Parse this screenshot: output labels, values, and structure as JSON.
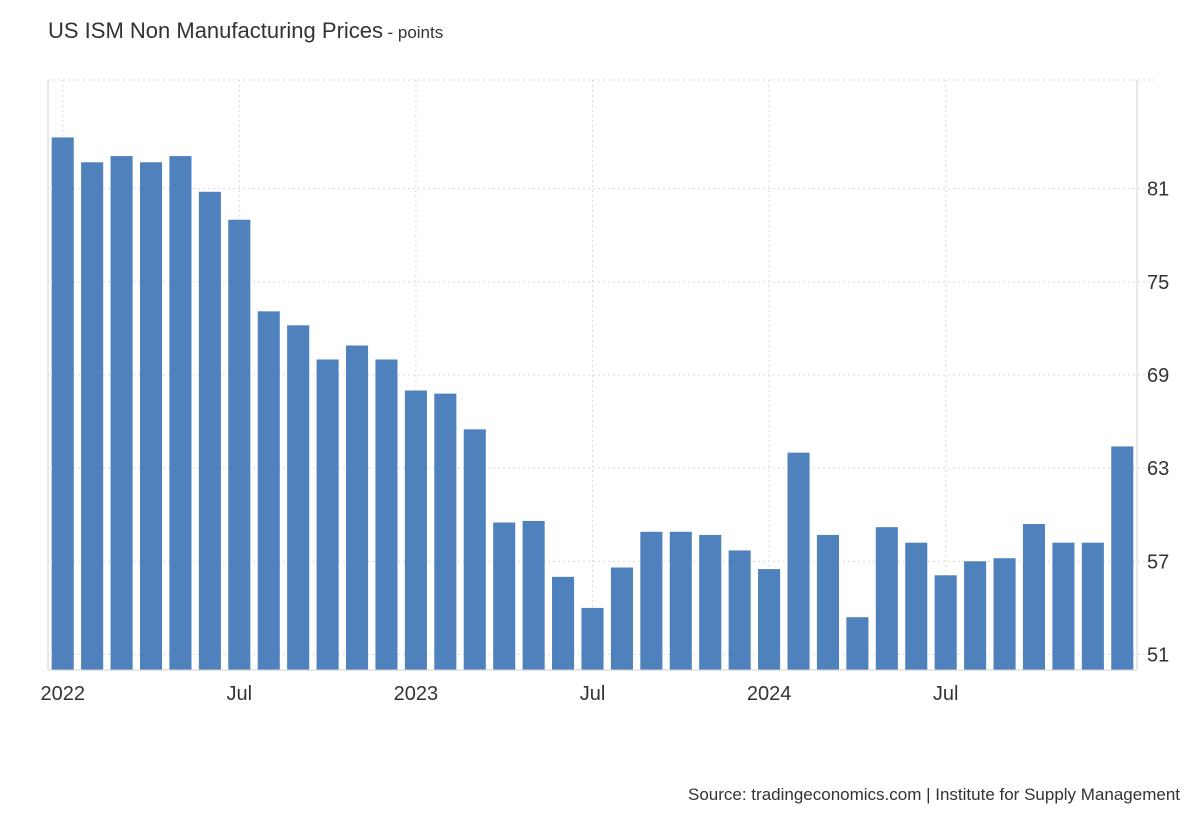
{
  "header": {
    "title": "US ISM Non Manufacturing Prices",
    "unit": "- points"
  },
  "footer": {
    "source": "Source: tradingeconomics.com | Institute for Supply Management"
  },
  "colors": {
    "bar": "#4f81bd",
    "grid": "#d9d9d9",
    "axis": "#d0d0d0",
    "text": "#333333"
  },
  "chart_data": {
    "type": "bar",
    "title": "US ISM Non Manufacturing Prices",
    "ylabel": "points",
    "ylim": [
      50,
      88
    ],
    "yticks": [
      51,
      57,
      63,
      69,
      75,
      81
    ],
    "grid": true,
    "x": [
      "2022-01",
      "2022-02",
      "2022-03",
      "2022-04",
      "2022-05",
      "2022-06",
      "2022-07",
      "2022-08",
      "2022-09",
      "2022-10",
      "2022-11",
      "2022-12",
      "2023-01",
      "2023-02",
      "2023-03",
      "2023-04",
      "2023-05",
      "2023-06",
      "2023-07",
      "2023-08",
      "2023-09",
      "2023-10",
      "2023-11",
      "2023-12",
      "2024-01",
      "2024-02",
      "2024-03",
      "2024-04",
      "2024-05",
      "2024-06",
      "2024-07",
      "2024-08",
      "2024-09",
      "2024-10",
      "2024-11",
      "2024-12",
      "2025-01"
    ],
    "values": [
      84.3,
      82.7,
      83.1,
      82.7,
      83.1,
      80.8,
      79.0,
      73.1,
      72.2,
      70.0,
      70.9,
      70.0,
      68.0,
      67.8,
      65.5,
      59.5,
      59.6,
      56.0,
      54.0,
      56.6,
      58.9,
      58.9,
      58.7,
      57.7,
      56.5,
      64.0,
      58.7,
      53.4,
      59.2,
      58.2,
      56.1,
      57.0,
      57.2,
      59.4,
      58.2,
      58.2,
      64.4
    ],
    "xtick_labels": [
      {
        "index": 0,
        "label": "2022"
      },
      {
        "index": 6,
        "label": "Jul"
      },
      {
        "index": 12,
        "label": "2023"
      },
      {
        "index": 18,
        "label": "Jul"
      },
      {
        "index": 24,
        "label": "2024"
      },
      {
        "index": 30,
        "label": "Jul"
      }
    ]
  }
}
